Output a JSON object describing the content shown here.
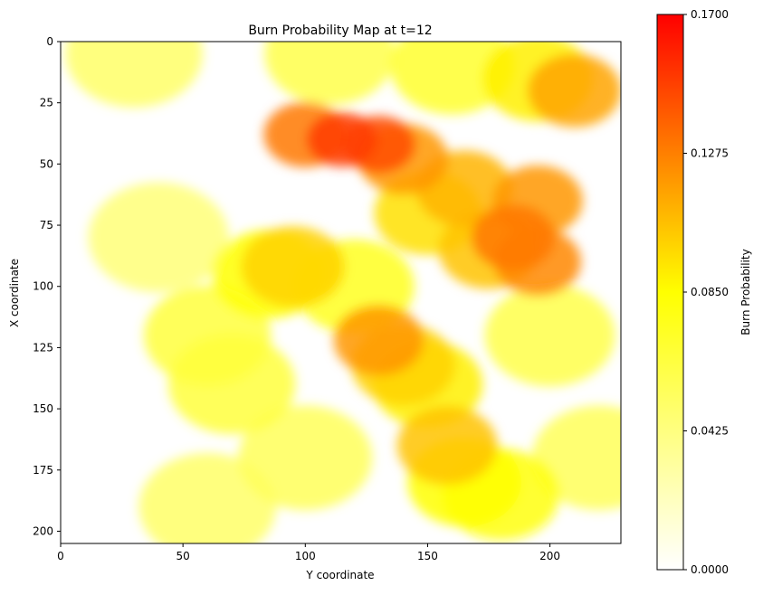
{
  "chart_data": {
    "type": "heatmap",
    "title": "Burn Probability Map at t=12",
    "xlabel": "Y coordinate",
    "ylabel": "X coordinate",
    "xlim": [
      0,
      229
    ],
    "ylim": [
      205,
      0
    ],
    "xticks": [
      0,
      50,
      100,
      150,
      200
    ],
    "yticks": [
      0,
      25,
      50,
      75,
      100,
      125,
      150,
      175,
      200
    ],
    "colorbar": {
      "label": "Burn Probability",
      "min": 0.0,
      "max": 0.17,
      "ticks": [
        "0.0000",
        "0.0425",
        "0.0850",
        "0.1275",
        "0.1700"
      ],
      "colormap": "autumn_r"
    },
    "hotspots": [
      {
        "x": 115,
        "y": 40,
        "value": 0.15
      },
      {
        "x": 130,
        "y": 42,
        "value": 0.145
      },
      {
        "x": 100,
        "y": 38,
        "value": 0.13
      },
      {
        "x": 140,
        "y": 48,
        "value": 0.12
      },
      {
        "x": 165,
        "y": 60,
        "value": 0.11
      },
      {
        "x": 195,
        "y": 65,
        "value": 0.12
      },
      {
        "x": 185,
        "y": 80,
        "value": 0.13
      },
      {
        "x": 195,
        "y": 90,
        "value": 0.125
      },
      {
        "x": 175,
        "y": 85,
        "value": 0.105
      },
      {
        "x": 210,
        "y": 20,
        "value": 0.115
      },
      {
        "x": 195,
        "y": 15,
        "value": 0.09
      },
      {
        "x": 130,
        "y": 122,
        "value": 0.12
      },
      {
        "x": 140,
        "y": 132,
        "value": 0.1
      },
      {
        "x": 150,
        "y": 140,
        "value": 0.09
      },
      {
        "x": 158,
        "y": 165,
        "value": 0.105
      },
      {
        "x": 165,
        "y": 180,
        "value": 0.085
      },
      {
        "x": 180,
        "y": 185,
        "value": 0.08
      },
      {
        "x": 95,
        "y": 92,
        "value": 0.1
      },
      {
        "x": 85,
        "y": 95,
        "value": 0.085
      },
      {
        "x": 150,
        "y": 70,
        "value": 0.095
      },
      {
        "x": 120,
        "y": 100,
        "value": 0.075
      },
      {
        "x": 60,
        "y": 120,
        "value": 0.065
      },
      {
        "x": 70,
        "y": 140,
        "value": 0.065
      },
      {
        "x": 40,
        "y": 80,
        "value": 0.045
      },
      {
        "x": 200,
        "y": 120,
        "value": 0.06
      },
      {
        "x": 220,
        "y": 170,
        "value": 0.055
      },
      {
        "x": 100,
        "y": 170,
        "value": 0.055
      },
      {
        "x": 60,
        "y": 190,
        "value": 0.05
      },
      {
        "x": 30,
        "y": 5,
        "value": 0.05
      },
      {
        "x": 110,
        "y": 5,
        "value": 0.06
      },
      {
        "x": 160,
        "y": 10,
        "value": 0.07
      }
    ]
  }
}
